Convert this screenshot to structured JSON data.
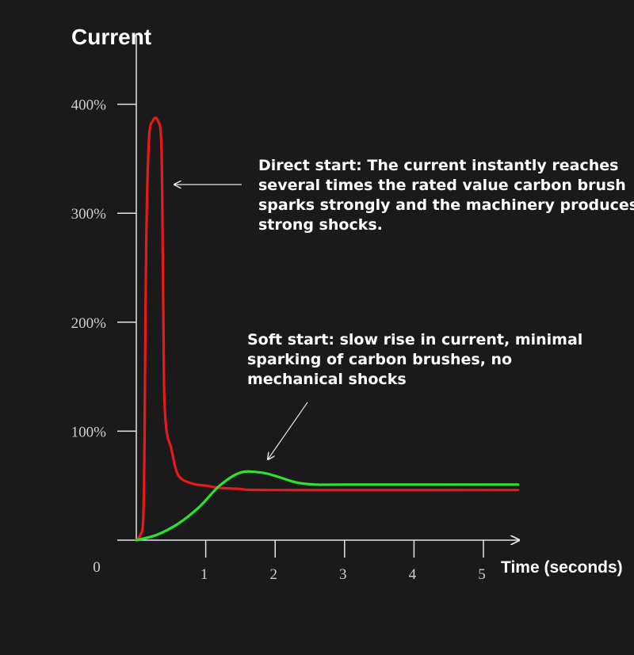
{
  "chart_data": {
    "type": "line",
    "title": "Current",
    "xlabel": "Time (seconds)",
    "ylabel": "",
    "xlim": [
      0,
      5.5
    ],
    "ylim": [
      0,
      400
    ],
    "x_ticks": [
      {
        "value": 0,
        "label": "0"
      },
      {
        "value": 1,
        "label": "1"
      },
      {
        "value": 2,
        "label": "2"
      },
      {
        "value": 3,
        "label": "3"
      },
      {
        "value": 4,
        "label": "4"
      },
      {
        "value": 5,
        "label": "5"
      }
    ],
    "y_ticks": [
      {
        "value": 400,
        "label": "400%"
      },
      {
        "value": 300,
        "label": "300%"
      },
      {
        "value": 200,
        "label": "200%"
      },
      {
        "value": 100,
        "label": "100%"
      }
    ],
    "grid": false,
    "series": [
      {
        "color": "#e8191b",
        "x": [
          0,
          0.06,
          0.1,
          0.12,
          0.14,
          0.18,
          0.24,
          0.31,
          0.36,
          0.38,
          0.39,
          0.4,
          0.42,
          0.45,
          0.5,
          0.6,
          0.8,
          1.0,
          1.2,
          1.5,
          2.0,
          5.5
        ],
        "y": [
          0,
          5,
          20,
          100,
          260,
          365,
          385,
          385,
          365,
          270,
          200,
          140,
          110,
          95,
          85,
          60,
          52,
          50,
          48,
          47,
          46,
          46
        ]
      },
      {
        "color": "#2ee12e",
        "x": [
          0,
          0.3,
          0.6,
          0.9,
          1.2,
          1.5,
          1.8,
          2.0,
          2.3,
          2.6,
          3.0,
          5.5
        ],
        "y": [
          0,
          5,
          15,
          30,
          50,
          62,
          62,
          59,
          53,
          51,
          51,
          51
        ]
      }
    ],
    "annotations": [
      {
        "lines": [
          "Direct start: The current instantly reaches",
          "several times the rated value carbon brush",
          "sparks strongly and the machinery produces",
          "strong shocks."
        ]
      },
      {
        "lines": [
          "Soft start: slow rise in current, minimal",
          "sparking of carbon brushes, no",
          "mechanical shocks"
        ]
      }
    ],
    "colors": {
      "background": "#1a1a1a",
      "axis": "#e6e6e6",
      "text": "#ffffff",
      "tick_text": "#cfcfcf"
    }
  }
}
